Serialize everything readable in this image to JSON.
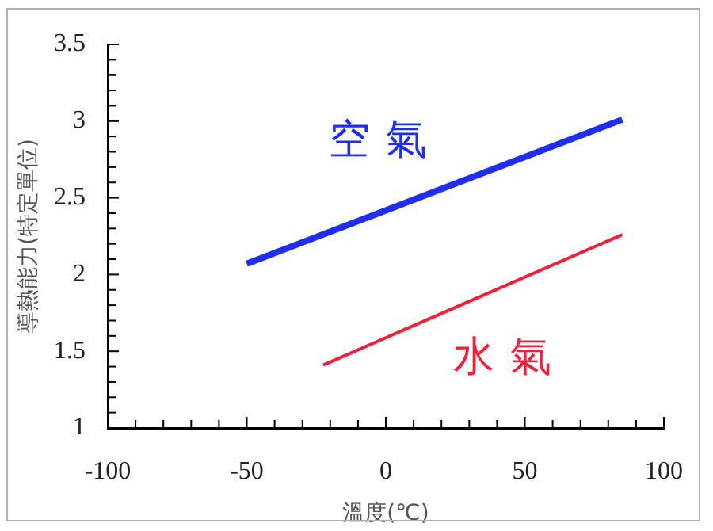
{
  "chart_data": {
    "type": "line",
    "xlabel": "溫度(℃)",
    "ylabel": "導熱能力(特定單位)",
    "xlim": [
      -100,
      100
    ],
    "xticks": [
      -100,
      {
        "value": -90,
        "label": null
      },
      {
        "value": -80,
        "label": null
      },
      {
        "value": -70,
        "label": null
      },
      {
        "value": -60,
        "label": null
      },
      -50,
      {
        "value": -40,
        "label": null
      },
      {
        "value": -30,
        "label": null
      },
      {
        "value": -20,
        "label": null
      },
      {
        "value": -10,
        "label": null
      },
      0,
      {
        "value": 10,
        "label": null
      },
      {
        "value": 20,
        "label": null
      },
      {
        "value": 30,
        "label": null
      },
      {
        "value": 40,
        "label": null
      },
      50,
      {
        "value": 60,
        "label": null
      },
      {
        "value": 70,
        "label": null
      },
      {
        "value": 80,
        "label": null
      },
      {
        "value": 90,
        "label": null
      },
      100
    ],
    "ylim": [
      1,
      3.5
    ],
    "yticks": [
      1,
      {
        "value": 1.1,
        "label": null
      },
      {
        "value": 1.2,
        "label": null
      },
      {
        "value": 1.3,
        "label": null
      },
      {
        "value": 1.4,
        "label": null
      },
      1.5,
      {
        "value": 1.6,
        "label": null
      },
      {
        "value": 1.7,
        "label": null
      },
      {
        "value": 1.8,
        "label": null
      },
      {
        "value": 1.9,
        "label": null
      },
      2,
      {
        "value": 2.1,
        "label": null
      },
      {
        "value": 2.2,
        "label": null
      },
      {
        "value": 2.3,
        "label": null
      },
      {
        "value": 2.4,
        "label": null
      },
      2.5,
      {
        "value": 2.6,
        "label": null
      },
      {
        "value": 2.7,
        "label": null
      },
      {
        "value": 2.8,
        "label": null
      },
      {
        "value": 2.9,
        "label": null
      },
      3,
      {
        "value": 3.1,
        "label": null
      },
      {
        "value": 3.2,
        "label": null
      },
      {
        "value": 3.3,
        "label": null
      },
      {
        "value": 3.4,
        "label": null
      },
      3.5
    ],
    "grid": false,
    "legend": false,
    "marker": "none",
    "line_style": "solid",
    "series": [
      {
        "name": "空氣",
        "color": "#1f2ef0",
        "x": [
          -50,
          85
        ],
        "values": [
          2.07,
          3.01
        ]
      },
      {
        "name": "水氣",
        "color": "#f0203a",
        "x": [
          -22.5,
          85
        ],
        "values": [
          1.41,
          2.26
        ]
      }
    ]
  }
}
